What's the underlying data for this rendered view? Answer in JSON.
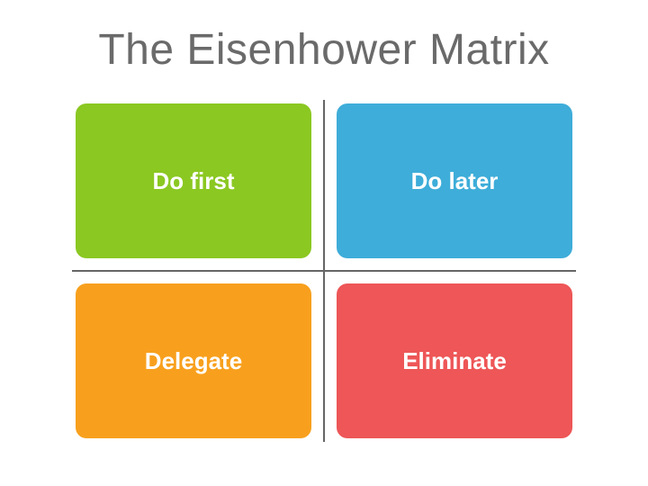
{
  "title": "The Eisenhower Matrix",
  "title_color": "#6a6a6a",
  "title_fontsize": 48,
  "title_fontweight": 400,
  "background_color": "#ffffff",
  "divider_color": "#666666",
  "divider_width": 2,
  "quadrant_border_radius": 12,
  "label_color": "#ffffff",
  "label_fontsize": 26,
  "label_fontweight": 700,
  "quadrants": [
    {
      "label": "Do first",
      "color": "#8bc822"
    },
    {
      "label": "Do later",
      "color": "#3eadd9"
    },
    {
      "label": "Delegate",
      "color": "#f8a01d"
    },
    {
      "label": "Eliminate",
      "color": "#ee5657"
    }
  ]
}
